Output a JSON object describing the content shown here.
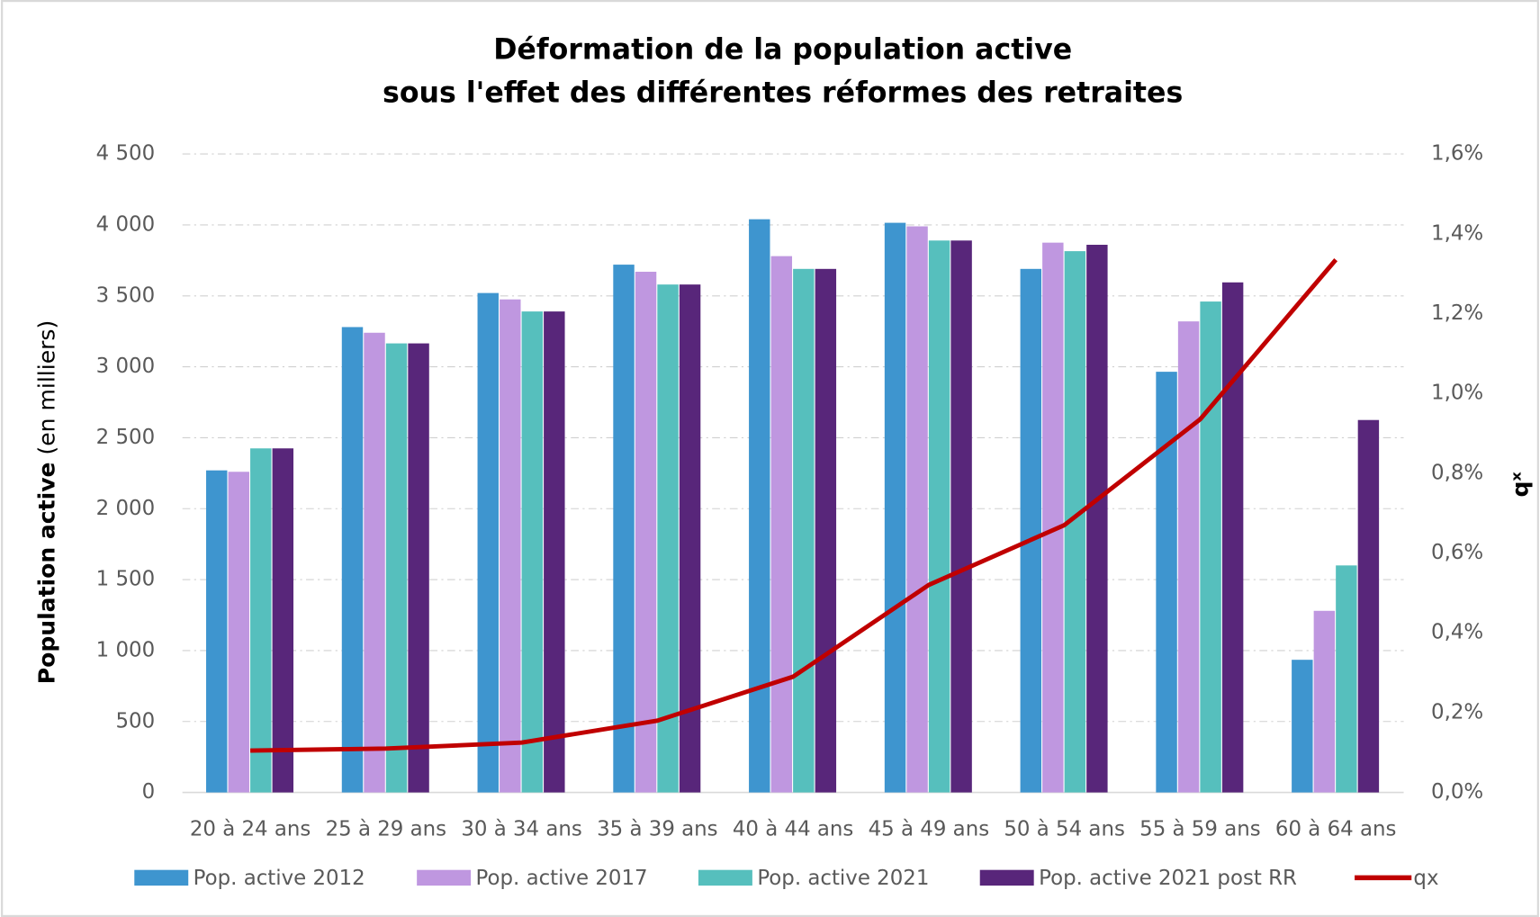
{
  "chart_data": {
    "type": "bar",
    "title": [
      "Déformation de la population active",
      "sous l'effet des différentes réformes des retraites"
    ],
    "ylabel": "Population active",
    "ylabel_note": "(en milliers)",
    "y2label": "qˣ",
    "categories": [
      "20 à 24 ans",
      "25 à 29 ans",
      "30 à 34 ans",
      "35 à 39 ans",
      "40 à 44 ans",
      "45 à 49 ans",
      "50 à 54 ans",
      "55 à 59 ans",
      "60 à 64 ans"
    ],
    "series": [
      {
        "name": "Pop. active 2012",
        "color": "#3e95cf",
        "values": [
          2270,
          3280,
          3520,
          3720,
          4040,
          4015,
          3690,
          2965,
          935
        ]
      },
      {
        "name": "Pop. active 2017",
        "color": "#bf97e0",
        "values": [
          2260,
          3240,
          3475,
          3670,
          3780,
          3990,
          3875,
          3320,
          1280
        ]
      },
      {
        "name": "Pop. active 2021",
        "color": "#56bfbd",
        "values": [
          2425,
          3165,
          3390,
          3580,
          3690,
          3890,
          3815,
          3460,
          1600
        ]
      },
      {
        "name": "Pop. active 2021 post RR",
        "color": "#58267a",
        "values": [
          2425,
          3165,
          3390,
          3580,
          3690,
          3890,
          3860,
          3595,
          2625
        ]
      },
      {
        "name": "qx",
        "type": "line",
        "axis": "y2",
        "color": "#c00000",
        "values": [
          0.105,
          0.11,
          0.125,
          0.18,
          0.29,
          0.52,
          0.67,
          0.935,
          1.335
        ]
      }
    ],
    "ylim": [
      0,
      4500
    ],
    "yticks": [
      0,
      500,
      {
        "value": 1000,
        "label": "1 000"
      },
      {
        "value": 1500,
        "label": "1 500"
      },
      {
        "value": 2000,
        "label": "2 000"
      },
      {
        "value": 2500,
        "label": "2 500"
      },
      {
        "value": 3000,
        "label": "3 000"
      },
      {
        "value": 3500,
        "label": "3 500"
      },
      {
        "value": 4000,
        "label": "4 000"
      },
      {
        "value": 4500,
        "label": "4 500"
      }
    ],
    "y2lim": [
      0,
      1.6
    ],
    "y2ticks": [
      {
        "value": 0,
        "label": "0,0%"
      },
      {
        "value": 0.2,
        "label": "0,2%"
      },
      {
        "value": 0.4,
        "label": "0,4%"
      },
      {
        "value": 0.6,
        "label": "0,6%"
      },
      {
        "value": 0.8,
        "label": "0,8%"
      },
      {
        "value": 1.0,
        "label": "1,0%"
      },
      {
        "value": 1.2,
        "label": "1,2%"
      },
      {
        "value": 1.4,
        "label": "1,4%"
      },
      {
        "value": 1.6,
        "label": "1,6%"
      }
    ],
    "grid": true,
    "legend": "bottom"
  }
}
